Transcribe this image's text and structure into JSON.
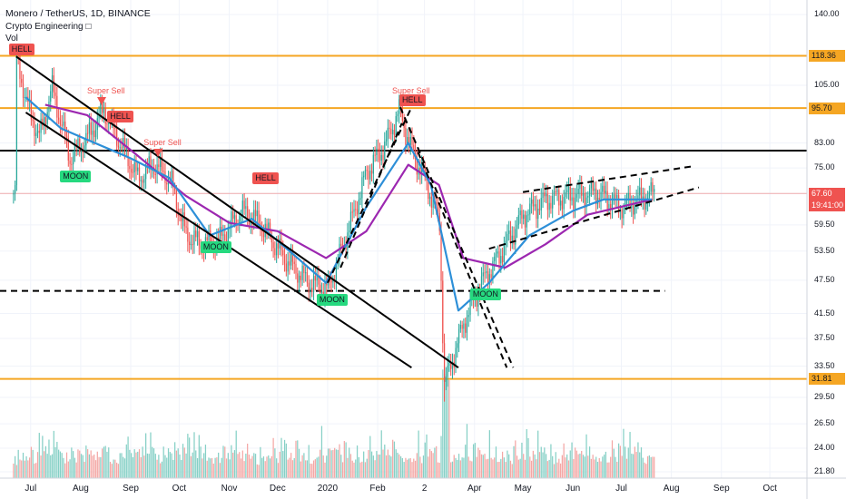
{
  "header": {
    "title": "Monero / TetherUS, 1D, BINANCE",
    "indicator": "Crypto Engineering",
    "volume_label": "Vol"
  },
  "colors": {
    "up": "#26a69a",
    "down": "#ef5350",
    "ma_fast": "#2d8fd8",
    "ma_slow": "#9c27b0",
    "level_orange": "#f5a623",
    "hell_tag": "#ef5350",
    "moon_tag": "#26d97f",
    "current_price": "#ef5350"
  },
  "price_axis": {
    "ticks": [
      "140.00",
      "118.36",
      "105.00",
      "95.70",
      "83.00",
      "75.00",
      "67.60",
      "59.50",
      "53.50",
      "47.50",
      "41.50",
      "37.50",
      "33.50",
      "31.81",
      "29.50",
      "26.50",
      "24.00",
      "21.80"
    ],
    "highlighted": [
      {
        "label": "118.36",
        "value": 118.36,
        "color": "#f5a623"
      },
      {
        "label": "95.70",
        "value": 95.7,
        "color": "#f5a623"
      },
      {
        "label": "67.60",
        "value": 67.6,
        "color": "#ef5350"
      },
      {
        "label": "19:41:00",
        "value": 64.5,
        "color": "#ef5350"
      },
      {
        "label": "31.81",
        "value": 31.81,
        "color": "#f5a623"
      }
    ]
  },
  "time_axis": {
    "labels": [
      "Jul",
      "Aug",
      "Sep",
      "Oct",
      "Nov",
      "Dec",
      "2020",
      "Feb",
      "2",
      "Apr",
      "May",
      "Jun",
      "Jul",
      "Aug",
      "Sep",
      "Oct"
    ]
  },
  "signals": {
    "hell_label": "HELL",
    "moon_label": "MOON",
    "super_sell_label": "Super Sell"
  },
  "chart_data": {
    "type": "candlestick",
    "symbol": "Monero / TetherUS",
    "interval": "1D",
    "exchange": "BINANCE",
    "x_range": [
      "2019-06-21",
      "2020-07-21"
    ],
    "y_scale": "log",
    "horizontal_levels": [
      118.36,
      95.7,
      80.5,
      45.5,
      31.81
    ],
    "last_price": 67.6,
    "price_path": [
      {
        "date": "2019-06-22",
        "price": 118
      },
      {
        "date": "2019-06-28",
        "price": 98
      },
      {
        "date": "2019-07-06",
        "price": 85
      },
      {
        "date": "2019-07-14",
        "price": 104
      },
      {
        "date": "2019-07-25",
        "price": 78
      },
      {
        "date": "2019-08-05",
        "price": 85
      },
      {
        "date": "2019-08-15",
        "price": 95
      },
      {
        "date": "2019-08-25",
        "price": 83
      },
      {
        "date": "2019-09-05",
        "price": 72
      },
      {
        "date": "2019-09-15",
        "price": 76
      },
      {
        "date": "2019-09-25",
        "price": 72
      },
      {
        "date": "2019-10-05",
        "price": 57
      },
      {
        "date": "2019-10-15",
        "price": 55
      },
      {
        "date": "2019-10-26",
        "price": 56
      },
      {
        "date": "2019-11-08",
        "price": 63
      },
      {
        "date": "2019-11-20",
        "price": 60
      },
      {
        "date": "2019-12-05",
        "price": 52
      },
      {
        "date": "2019-12-20",
        "price": 47
      },
      {
        "date": "2020-01-01",
        "price": 46
      },
      {
        "date": "2020-01-15",
        "price": 60
      },
      {
        "date": "2020-01-25",
        "price": 74
      },
      {
        "date": "2020-02-05",
        "price": 82
      },
      {
        "date": "2020-02-14",
        "price": 95
      },
      {
        "date": "2020-02-22",
        "price": 80
      },
      {
        "date": "2020-03-01",
        "price": 72
      },
      {
        "date": "2020-03-10",
        "price": 60
      },
      {
        "date": "2020-03-13",
        "price": 31
      },
      {
        "date": "2020-03-25",
        "price": 40
      },
      {
        "date": "2020-04-05",
        "price": 47
      },
      {
        "date": "2020-04-15",
        "price": 52
      },
      {
        "date": "2020-05-01",
        "price": 62
      },
      {
        "date": "2020-05-15",
        "price": 66
      },
      {
        "date": "2020-06-01",
        "price": 67
      },
      {
        "date": "2020-06-15",
        "price": 68
      },
      {
        "date": "2020-07-01",
        "price": 64
      },
      {
        "date": "2020-07-12",
        "price": 66
      },
      {
        "date": "2020-07-20",
        "price": 67.6
      }
    ],
    "ma_fast": [
      {
        "date": "2019-06-28",
        "price": 100
      },
      {
        "date": "2019-07-20",
        "price": 88
      },
      {
        "date": "2019-08-10",
        "price": 83
      },
      {
        "date": "2019-09-01",
        "price": 78
      },
      {
        "date": "2019-09-25",
        "price": 72
      },
      {
        "date": "2019-10-20",
        "price": 57
      },
      {
        "date": "2019-11-15",
        "price": 61
      },
      {
        "date": "2019-12-10",
        "price": 53
      },
      {
        "date": "2019-12-31",
        "price": 47
      },
      {
        "date": "2020-01-25",
        "price": 64
      },
      {
        "date": "2020-02-20",
        "price": 83
      },
      {
        "date": "2020-03-05",
        "price": 70
      },
      {
        "date": "2020-03-22",
        "price": 42
      },
      {
        "date": "2020-04-10",
        "price": 47
      },
      {
        "date": "2020-05-05",
        "price": 57
      },
      {
        "date": "2020-06-01",
        "price": 63
      },
      {
        "date": "2020-06-20",
        "price": 66
      },
      {
        "date": "2020-07-20",
        "price": 66
      }
    ],
    "ma_slow": [
      {
        "date": "2019-07-10",
        "price": 97
      },
      {
        "date": "2019-08-05",
        "price": 93
      },
      {
        "date": "2019-09-05",
        "price": 79
      },
      {
        "date": "2019-10-05",
        "price": 67
      },
      {
        "date": "2019-11-01",
        "price": 60
      },
      {
        "date": "2019-12-01",
        "price": 58
      },
      {
        "date": "2019-12-31",
        "price": 52
      },
      {
        "date": "2020-01-25",
        "price": 58
      },
      {
        "date": "2020-02-20",
        "price": 76
      },
      {
        "date": "2020-03-10",
        "price": 70
      },
      {
        "date": "2020-03-25",
        "price": 52
      },
      {
        "date": "2020-04-20",
        "price": 50
      },
      {
        "date": "2020-05-15",
        "price": 55
      },
      {
        "date": "2020-06-10",
        "price": 62
      },
      {
        "date": "2020-07-20",
        "price": 66
      }
    ],
    "signals": [
      {
        "date": "2019-06-22",
        "type": "HELL"
      },
      {
        "date": "2019-07-26",
        "type": "MOON"
      },
      {
        "date": "2019-08-14",
        "type": "Super Sell"
      },
      {
        "date": "2019-08-22",
        "type": "HELL"
      },
      {
        "date": "2019-09-18",
        "type": "Super Sell"
      },
      {
        "date": "2019-10-21",
        "type": "MOON"
      },
      {
        "date": "2019-11-20",
        "type": "HELL"
      },
      {
        "date": "2020-01-01",
        "type": "MOON"
      },
      {
        "date": "2020-02-19",
        "type": "Super Sell"
      },
      {
        "date": "2020-02-19",
        "type": "HELL"
      },
      {
        "date": "2020-04-05",
        "type": "MOON"
      }
    ],
    "volume": {
      "peak_date": "2020-03-13",
      "relative": [
        0.3,
        0.25,
        0.2,
        0.5,
        0.3,
        0.25,
        0.4,
        0.35,
        0.3,
        0.25,
        0.6,
        0.9,
        0.4,
        0.3,
        0.25,
        0.5,
        0.7,
        0.4,
        0.8,
        0.6,
        0.5,
        0.4,
        0.7,
        0.35,
        0.3,
        0.9,
        0.6,
        0.5,
        0.4,
        0.45
      ]
    }
  }
}
